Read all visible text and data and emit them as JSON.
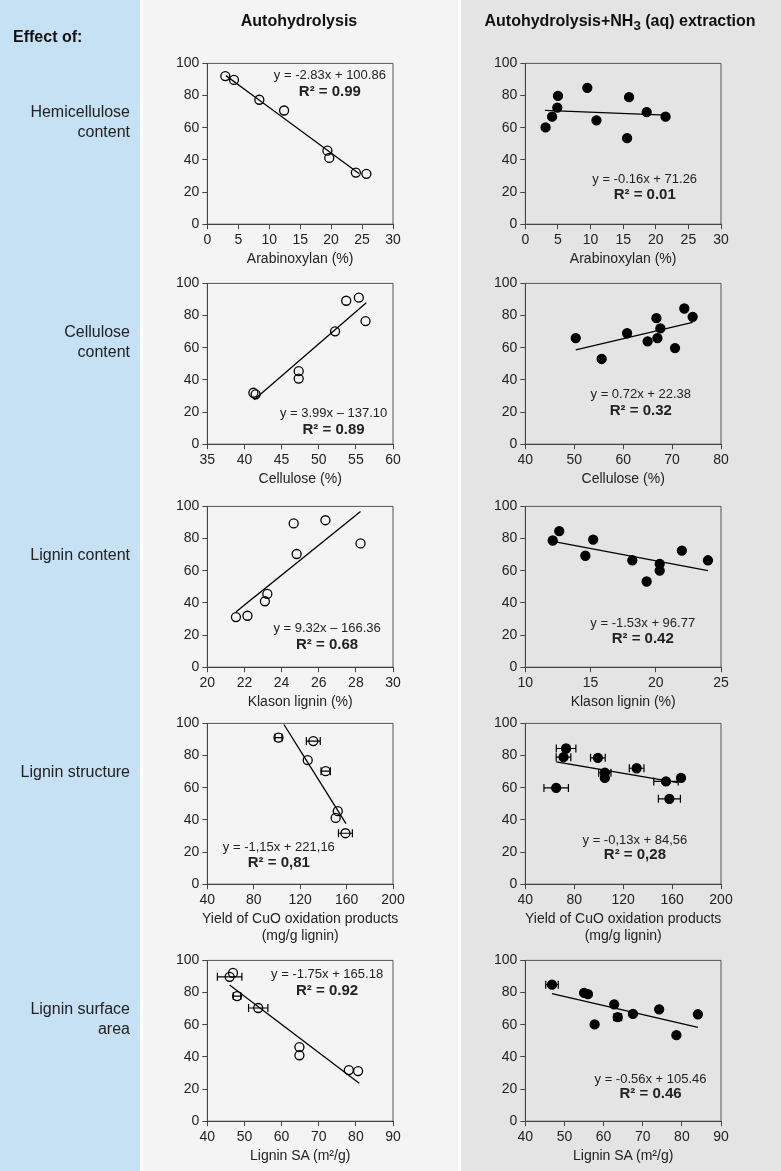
{
  "chart_data": [
    {
      "type": "scatter",
      "title": "Autohydrolysis",
      "subtitle": "Hemicellulose content",
      "xlabel": "Arabinoxylan (%)",
      "annotations": [
        "y = -2.83x + 100.86",
        "R² = 0.99",
        "Effect of:"
      ],
      "xlim": [
        0,
        30
      ],
      "xticks": [
        0,
        5,
        10,
        15,
        20,
        25,
        30
      ],
      "ylim": [
        0,
        100
      ],
      "yticks": [
        0,
        20,
        40,
        60,
        80,
        100
      ],
      "series": [
        {
          "color": "#000000",
          "marker": "circle",
          "x": [
            2.9,
            4.3,
            8.4,
            12.4,
            19.4,
            19.7,
            24.0,
            25.7
          ],
          "values": [
            92.1,
            89.7,
            77.4,
            70.7,
            45.7,
            41.2,
            32.1,
            31.3
          ]
        },
        {
          "type": "line",
          "color": "#000000",
          "x": [
            3,
            24.5
          ],
          "values": [
            92.4,
            31.5
          ]
        }
      ]
    },
    {
      "type": "scatter",
      "title": "Autohydrolysis+NH$_{3}$ (aq) extraction",
      "xlabel": "Arabinoxylan (%)",
      "annotations": [
        "y = -0.16x + 71.26",
        "R² = 0.01"
      ],
      "xlim": [
        0,
        30
      ],
      "xticks": [
        0,
        5,
        10,
        15,
        20,
        25,
        30
      ],
      "ylim": [
        0,
        100
      ],
      "yticks": [
        0,
        20,
        40,
        60,
        80,
        100
      ],
      "series": [
        {
          "color": "#000000",
          "marker": "circle",
          "x": [
            3.1,
            4.1,
            4.9,
            5.0,
            9.5,
            10.9,
            15.6,
            15.9,
            18.6,
            21.5
          ],
          "values": [
            60.2,
            66.9,
            72.5,
            79.8,
            84.8,
            64.6,
            53.5,
            79.0,
            69.7,
            66.9
          ]
        },
        {
          "type": "line",
          "color": "#000000",
          "x": [
            3,
            21.5
          ],
          "values": [
            70.8,
            67.8
          ]
        }
      ]
    },
    {
      "type": "scatter",
      "subtitle": "Cellulose content",
      "xlabel": "Cellulose (%)",
      "annotations": [
        "y = 3.99x – 137.10",
        "R² = 0.89"
      ],
      "xlim": [
        35,
        60
      ],
      "xticks": [
        35,
        40,
        45,
        50,
        55,
        60
      ],
      "ylim": [
        0,
        100
      ],
      "yticks": [
        0,
        20,
        40,
        60,
        80,
        100
      ],
      "series": [
        {
          "color": "#000000",
          "marker": "circle",
          "x": [
            41.2,
            41.5,
            47.3,
            47.3,
            52.2,
            53.7,
            55.4,
            56.3
          ],
          "values": [
            32.0,
            31.0,
            45.4,
            40.8,
            70.2,
            89.2,
            91.2,
            76.6
          ]
        },
        {
          "type": "line",
          "color": "#000000",
          "x": [
            41.3,
            56.4
          ],
          "values": [
            27.7,
            87.9
          ]
        }
      ]
    },
    {
      "type": "scatter",
      "xlabel": "Cellulose (%)",
      "annotations": [
        "y = 0.72x + 22.38",
        "R² = 0.32"
      ],
      "xlim": [
        40,
        80
      ],
      "xticks": [
        40,
        50,
        60,
        70,
        80
      ],
      "ylim": [
        0,
        100
      ],
      "yticks": [
        0,
        20,
        40,
        60,
        80,
        100
      ],
      "series": [
        {
          "color": "#000000",
          "marker": "circle",
          "x": [
            50.3,
            55.6,
            60.8,
            65.0,
            66.8,
            67.0,
            67.6,
            70.6,
            72.5,
            74.2
          ],
          "values": [
            66.0,
            53.0,
            69.0,
            64.0,
            78.4,
            66.0,
            72.0,
            59.8,
            84.4,
            79.2
          ]
        },
        {
          "type": "line",
          "color": "#000000",
          "x": [
            50.3,
            74.2
          ],
          "values": [
            58.6,
            75.8
          ]
        }
      ]
    },
    {
      "type": "scatter",
      "subtitle": "Lignin content",
      "xlabel": "Klason lignin (%)",
      "annotations": [
        "y = 9.32x – 166.36",
        "R² = 0.68"
      ],
      "xlim": [
        20,
        30
      ],
      "xticks": [
        20,
        22,
        24,
        26,
        28,
        30
      ],
      "ylim": [
        0,
        100
      ],
      "yticks": [
        0,
        20,
        40,
        60,
        80,
        100
      ],
      "series": [
        {
          "color": "#000000",
          "marker": "circle",
          "x": [
            21.54,
            22.16,
            23.1,
            23.23,
            24.65,
            24.81,
            26.36,
            28.25
          ],
          "values": [
            31.2,
            32.0,
            41.0,
            45.6,
            89.4,
            70.4,
            91.4,
            77.0
          ]
        },
        {
          "type": "line",
          "color": "#000000",
          "x": [
            21.54,
            28.25
          ],
          "values": [
            34.4,
            96.9
          ]
        }
      ]
    },
    {
      "type": "scatter",
      "xlabel": "Klason lignin (%)",
      "annotations": [
        "y = -1.53x + 96.77",
        "R² = 0.42"
      ],
      "xlim": [
        10,
        25
      ],
      "xticks": [
        10,
        15,
        20,
        25
      ],
      "ylim": [
        0,
        100
      ],
      "yticks": [
        0,
        20,
        40,
        60,
        80,
        100
      ],
      "series": [
        {
          "color": "#000000",
          "marker": "circle",
          "x": [
            12.1,
            12.6,
            14.6,
            15.2,
            18.2,
            19.3,
            20.3,
            20.3,
            22.0,
            24.0
          ],
          "values": [
            78.8,
            84.6,
            69.3,
            79.4,
            66.5,
            53.3,
            64.3,
            60.1,
            72.5,
            66.5
          ]
        },
        {
          "type": "line",
          "color": "#000000",
          "x": [
            12.1,
            24
          ],
          "values": [
            78.3,
            60.1
          ]
        }
      ]
    },
    {
      "type": "scatter",
      "subtitle": "Lignin structure",
      "xlabel": "Yield of CuO oxidation products (mg/g lignin)",
      "annotations": [
        "y = -1,15x + 221,16",
        "R² = 0,81"
      ],
      "xlim": [
        40,
        200
      ],
      "xticks": [
        40,
        80,
        120,
        160,
        200
      ],
      "ylim": [
        0,
        100
      ],
      "yticks": [
        0,
        20,
        40,
        60,
        80,
        100
      ],
      "series": [
        {
          "color": "#000000",
          "marker": "circle",
          "x": [
            101.3,
            131.3,
            126.5,
            142,
            152.4,
            150.6,
            159
          ],
          "values": [
            91.2,
            89.0,
            77.1,
            70.3,
            45.4,
            41.2,
            31.7
          ],
          "xerrors": [
            3,
            6,
            null,
            4,
            null,
            null,
            6
          ]
        },
        {
          "type": "line",
          "color": "#000000",
          "x": [
            106,
            159.5
          ],
          "values": [
            99.3,
            37.7
          ]
        }
      ]
    },
    {
      "type": "scatter",
      "xlabel": "Yield of CuO oxidation products (mg/g lignin)",
      "annotations": [
        "y = -0,13x + 84,56",
        "R² = 0,28"
      ],
      "xlim": [
        40,
        200
      ],
      "xticks": [
        40,
        80,
        120,
        160,
        200
      ],
      "ylim": [
        0,
        100
      ],
      "yticks": [
        0,
        20,
        40,
        60,
        80,
        100
      ],
      "series": [
        {
          "color": "#000000",
          "marker": "circle",
          "x": [
            73.3,
            71.2,
            99.3,
            65.2,
            131,
            105,
            105,
            155,
            167.3,
            157.8
          ],
          "values": [
            84.4,
            79.0,
            78.6,
            59.9,
            72.1,
            69.3,
            66.1,
            63.9,
            66.1,
            53.1
          ],
          "xerrors": [
            8,
            6,
            6,
            10,
            6,
            5,
            null,
            10,
            2,
            9
          ]
        },
        {
          "type": "line",
          "color": "#000000",
          "x": [
            65.2,
            164.6
          ],
          "values": [
            76.1,
            63.2
          ]
        }
      ]
    },
    {
      "type": "scatter",
      "subtitle": "Lignin surface area",
      "xlabel": "Lignin SA (m²/g)",
      "annotations": [
        "y = -1.75x + 165.18",
        "R² = 0.92"
      ],
      "xlim": [
        40,
        90
      ],
      "xticks": [
        40,
        50,
        60,
        70,
        80,
        90
      ],
      "ylim": [
        0,
        100
      ],
      "yticks": [
        0,
        20,
        40,
        60,
        80,
        100
      ],
      "series": [
        {
          "color": "#000000",
          "marker": "circle",
          "x": [
            46.9,
            46.0,
            48.0,
            53.7,
            64.8,
            64.8,
            78.1,
            80.6
          ],
          "values": [
            92.2,
            89.8,
            77.8,
            70.4,
            46.1,
            41.0,
            31.8,
            31.2
          ],
          "xerrors": [
            null,
            3.3,
            1,
            2.6,
            null,
            null,
            null,
            null
          ]
        },
        {
          "type": "line",
          "color": "#000000",
          "x": [
            46,
            80.9
          ],
          "values": [
            84.7,
            23.6
          ]
        }
      ]
    },
    {
      "type": "scatter",
      "xlabel": "Lignin SA (m²/g)",
      "annotations": [
        "y = -0.56x + 105.46",
        "R² = 0.46"
      ],
      "xlim": [
        40,
        90
      ],
      "xticks": [
        40,
        50,
        60,
        70,
        80,
        90
      ],
      "ylim": [
        0,
        100
      ],
      "yticks": [
        0,
        20,
        40,
        60,
        80,
        100
      ],
      "series": [
        {
          "color": "#000000",
          "marker": "circle",
          "x": [
            46.8,
            55.0,
            56.0,
            57.7,
            62.7,
            63.6,
            67.5,
            74.2,
            78.6,
            84.1
          ],
          "values": [
            84.9,
            79.8,
            79.0,
            60.2,
            72.7,
            64.7,
            66.7,
            69.6,
            53.5,
            66.5
          ],
          "xerrors": [
            1.6,
            null,
            null,
            null,
            null,
            1,
            null,
            null,
            null,
            null
          ]
        },
        {
          "type": "line",
          "color": "#000000",
          "x": [
            46.8,
            84.1
          ],
          "values": [
            79.3,
            58.4
          ]
        }
      ]
    }
  ]
}
